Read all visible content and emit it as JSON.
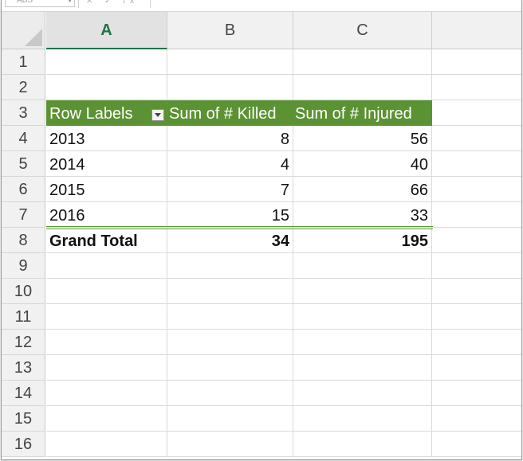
{
  "columns": [
    "A",
    "B",
    "C"
  ],
  "rows": [
    "1",
    "2",
    "3",
    "4",
    "5",
    "6",
    "7",
    "8",
    "9",
    "10",
    "11",
    "12",
    "13",
    "14",
    "15",
    "16"
  ],
  "pivot": {
    "headers": [
      "Row Labels",
      "Sum of # Killed",
      "Sum of # Injured"
    ],
    "data": [
      {
        "label": "2013",
        "killed": "8",
        "injured": "56"
      },
      {
        "label": "2014",
        "killed": "4",
        "injured": "40"
      },
      {
        "label": "2015",
        "killed": "7",
        "injured": "66"
      },
      {
        "label": "2016",
        "killed": "15",
        "injured": "33"
      }
    ],
    "total": {
      "label": "Grand Total",
      "killed": "34",
      "injured": "195"
    }
  },
  "colors": {
    "pivot_header": "#5b9233",
    "selected_column": "#217346"
  }
}
